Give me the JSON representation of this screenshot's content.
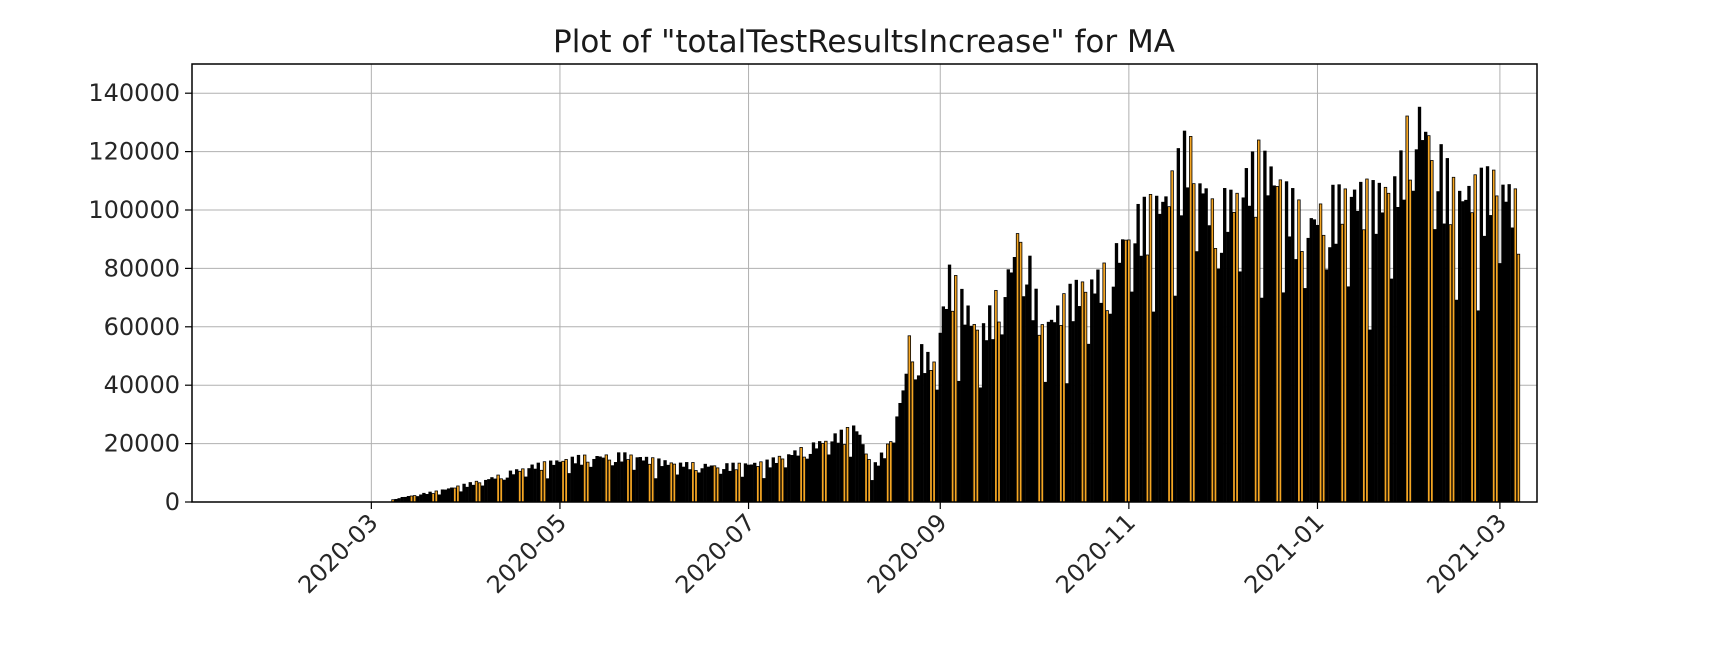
{
  "chart_data": {
    "type": "bar",
    "title": "Plot of \"totalTestResultsIncrease\" for MA",
    "xlabel": "",
    "ylabel": "",
    "x_axis_type": "date",
    "xlim": [
      "2020-01-03",
      "2021-03-13"
    ],
    "ylim": [
      0,
      150000
    ],
    "y_ticks": [
      0,
      20000,
      40000,
      60000,
      80000,
      100000,
      120000,
      140000
    ],
    "x_ticks": [
      "2020-03",
      "2020-05",
      "2020-07",
      "2020-09",
      "2020-11",
      "2021-01",
      "2021-03"
    ],
    "grid": true,
    "bar_colors": {
      "weekday": "#000000",
      "weekend": "#f5a623",
      "edge": "#000000"
    },
    "series": [
      {
        "dates": [
          "2020-03-08",
          "2020-03-23",
          "2020-04-07",
          "2020-04-22",
          "2020-05-07",
          "2020-05-22",
          "2020-06-06",
          "2020-06-21",
          "2020-07-06",
          "2020-07-21",
          "2020-08-05",
          "2020-08-10",
          "2020-08-15",
          "2020-08-20",
          "2020-08-22",
          "2020-08-30",
          "2020-09-04",
          "2020-09-14",
          "2020-09-24",
          "2020-09-27",
          "2020-10-04",
          "2020-10-14",
          "2020-10-24",
          "2020-11-03",
          "2020-11-13",
          "2020-11-20",
          "2020-11-28",
          "2020-12-05",
          "2020-12-13",
          "2020-12-20",
          "2020-12-28",
          "2021-01-05",
          "2021-01-13",
          "2021-01-20",
          "2021-01-27",
          "2021-02-01",
          "2021-02-08",
          "2021-02-15",
          "2021-02-22",
          "2021-03-01",
          "2021-03-07"
        ],
        "values": [
          1000,
          4000,
          8000,
          13000,
          16000,
          17000,
          14000,
          13000,
          14000,
          20000,
          27000,
          12000,
          20000,
          40000,
          58000,
          50000,
          82000,
          60000,
          85000,
          101000,
          62000,
          76000,
          82000,
          102000,
          110000,
          130000,
          105000,
          110000,
          124000,
          115000,
          100000,
          108000,
          112000,
          110000,
          116000,
          143000,
          128000,
          110000,
          114000,
          117000,
          106000
        ]
      }
    ]
  }
}
